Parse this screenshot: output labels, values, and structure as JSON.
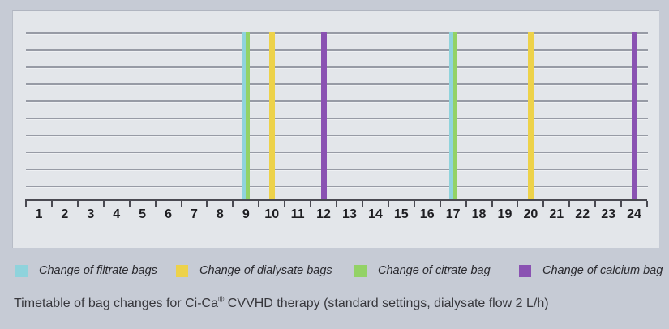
{
  "window": {
    "background_color": "#c6cbd5",
    "panel_color": "#e3e6ea",
    "gridline_color": "#979ba5",
    "axis_color": "#4a4a52"
  },
  "chart_data": {
    "type": "bar",
    "title": "Timetable of bag changes for Ci-Ca® CVVHD therapy (standard settings, dialysate flow 2 L/h)",
    "categories": [
      "1",
      "2",
      "3",
      "4",
      "5",
      "6",
      "7",
      "8",
      "9",
      "10",
      "11",
      "12",
      "13",
      "14",
      "15",
      "16",
      "17",
      "18",
      "19",
      "20",
      "21",
      "22",
      "23",
      "24"
    ],
    "xlabel": "",
    "ylabel": "",
    "x_range": [
      0,
      24
    ],
    "gridlines": {
      "horizontal_count": 10
    },
    "legend_position": "bottom",
    "series": [
      {
        "name": "Change of filtrate bags",
        "color": "#8fd3dc",
        "event_hours": [
          9,
          17
        ]
      },
      {
        "name": "Change of dialysate bags",
        "color": "#edd24a",
        "event_hours": [
          10,
          20
        ]
      },
      {
        "name": "Change of citrate bag",
        "color": "#93d266",
        "event_hours": [
          9,
          17
        ]
      },
      {
        "name": "Change of calcium bag",
        "color": "#8a52b2",
        "event_hours": [
          12,
          24
        ]
      }
    ]
  },
  "caption": {
    "pre": "Timetable of bag changes for Ci-Ca",
    "registered_mark": "®",
    "post": " CVVHD therapy (standard settings, dialysate flow 2 L/h)"
  }
}
